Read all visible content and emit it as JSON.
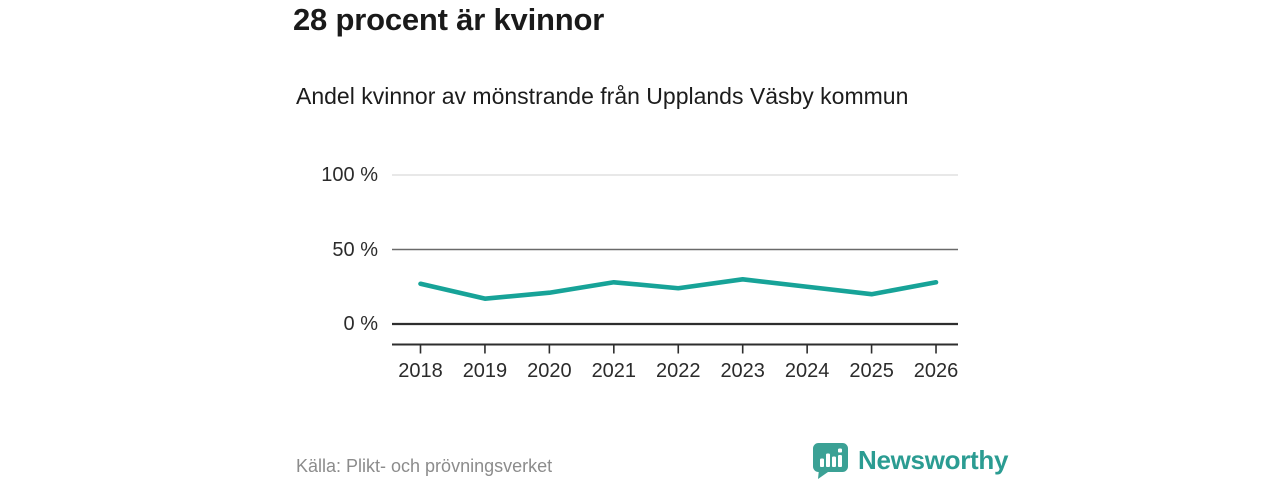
{
  "header": {
    "title": "28 procent är kvinnor",
    "subtitle": "Andel kvinnor av mönstrande från Upplands Väsby kommun"
  },
  "chart_data": {
    "type": "line",
    "title": "28 procent är kvinnor",
    "subtitle": "Andel kvinnor av mönstrande från Upplands Väsby kommun",
    "categories": [
      "2018",
      "2019",
      "2020",
      "2021",
      "2022",
      "2023",
      "2024",
      "2025",
      "2026"
    ],
    "series": [
      {
        "name": "Andel kvinnor av mönstrande",
        "values": [
          27,
          17,
          21,
          28,
          24,
          30,
          25,
          20,
          28
        ]
      }
    ],
    "unit": "%",
    "xlabel": "",
    "ylabel": "",
    "ylim": [
      0,
      100
    ],
    "y_ticks": [
      {
        "value": 100,
        "label": "100 %"
      },
      {
        "value": 50,
        "label": "50 %"
      },
      {
        "value": 0,
        "label": "0 %"
      }
    ],
    "grid": "horizontal",
    "legend": "none",
    "line_color": "#17a398"
  },
  "footer": {
    "source": "Källa: Plikt- och prövningsverket",
    "brand": {
      "name": "Newsworthy",
      "color": "#2b9c92",
      "icon": "bar-chart-speech-bubble-icon"
    }
  }
}
